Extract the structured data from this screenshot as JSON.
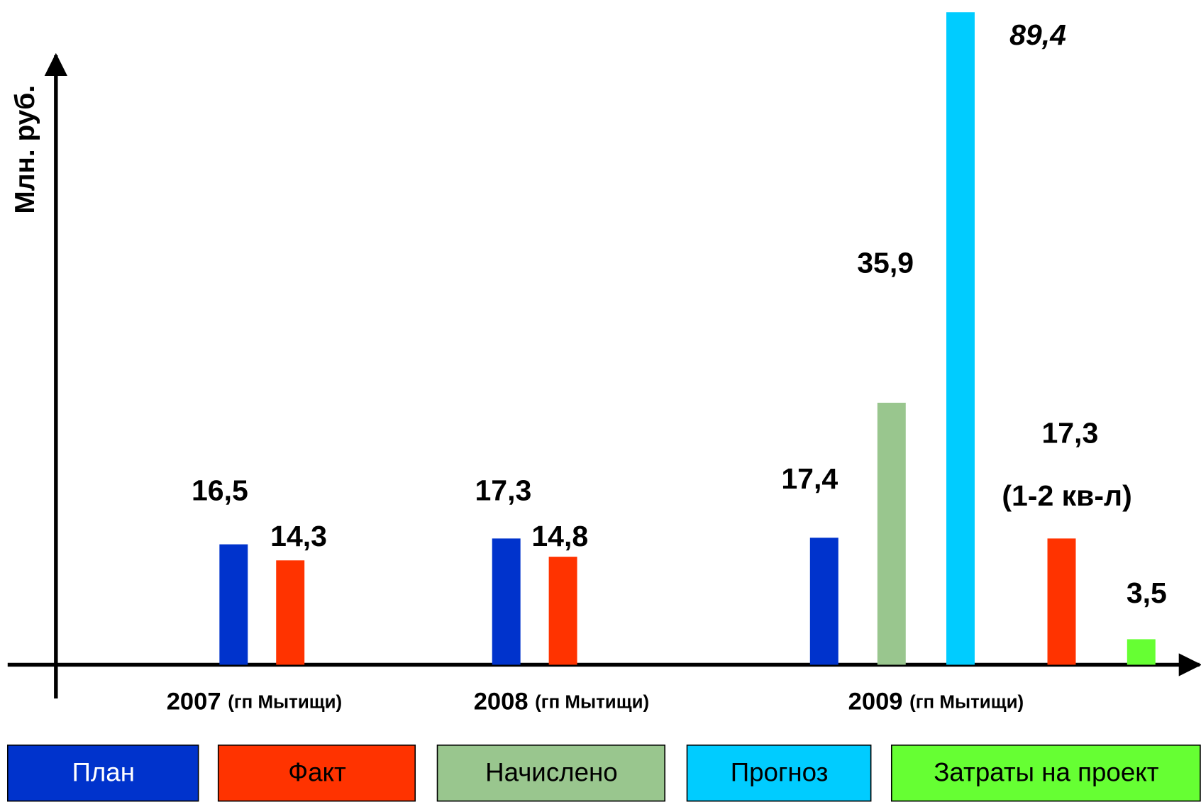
{
  "chart_data": {
    "type": "bar",
    "y_label": "Млн. руб.",
    "categories": [
      "2007",
      "2008",
      "2009"
    ],
    "category_note": "(гп Мытищи)",
    "ylim": [
      0,
      90
    ],
    "series": [
      {
        "name": "План",
        "color": "#0033cc",
        "values": [
          16.5,
          17.3,
          17.4
        ],
        "value_labels": [
          "16,5",
          "17,3",
          "17,4"
        ]
      },
      {
        "name": "Факт",
        "color": "#ff3300",
        "values": [
          14.3,
          14.8,
          17.3
        ],
        "value_labels": [
          "14,3",
          "14,8",
          "17,3"
        ]
      },
      {
        "name": "Начислено",
        "color": "#99c68e",
        "values": [
          null,
          null,
          35.9
        ],
        "value_labels": [
          null,
          null,
          "35,9"
        ]
      },
      {
        "name": "Прогноз",
        "color": "#00ccff",
        "values": [
          null,
          null,
          89.4
        ],
        "value_labels": [
          null,
          null,
          "89,4"
        ]
      },
      {
        "name": "Затраты на проект",
        "color": "#66ff33",
        "values": [
          null,
          null,
          3.5
        ],
        "value_labels": [
          null,
          null,
          "3,5"
        ]
      }
    ],
    "annotations": [
      {
        "text": "(1-2 кв-л)"
      }
    ]
  }
}
